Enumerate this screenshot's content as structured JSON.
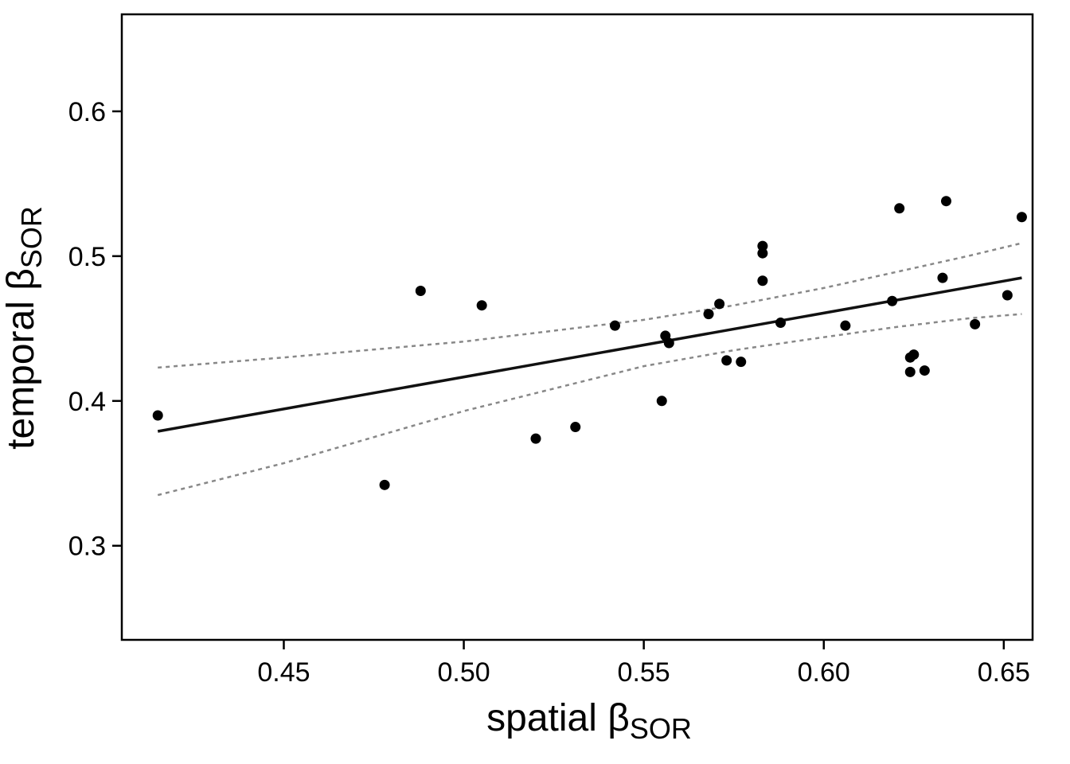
{
  "chart_data": {
    "type": "scatter",
    "xlabel": {
      "main": "spatial ",
      "symbol": "β",
      "sub": "SOR"
    },
    "ylabel": {
      "main": "temporal ",
      "symbol": "β",
      "sub": "SOR"
    },
    "xlim": [
      0.405,
      0.658
    ],
    "ylim": [
      0.235,
      0.667
    ],
    "x_ticks": [
      {
        "value": 0.45,
        "label": "0.45"
      },
      {
        "value": 0.5,
        "label": "0.50"
      },
      {
        "value": 0.55,
        "label": "0.55"
      },
      {
        "value": 0.6,
        "label": "0.60"
      },
      {
        "value": 0.65,
        "label": "0.65"
      }
    ],
    "y_ticks": [
      {
        "value": 0.3,
        "label": "0.3"
      },
      {
        "value": 0.4,
        "label": "0.4"
      },
      {
        "value": 0.5,
        "label": "0.5"
      },
      {
        "value": 0.6,
        "label": "0.6"
      }
    ],
    "grid": false,
    "points": [
      [
        0.415,
        0.39
      ],
      [
        0.478,
        0.342
      ],
      [
        0.488,
        0.476
      ],
      [
        0.505,
        0.466
      ],
      [
        0.52,
        0.374
      ],
      [
        0.531,
        0.382
      ],
      [
        0.542,
        0.452
      ],
      [
        0.555,
        0.4
      ],
      [
        0.556,
        0.445
      ],
      [
        0.557,
        0.44
      ],
      [
        0.568,
        0.46
      ],
      [
        0.571,
        0.467
      ],
      [
        0.573,
        0.428
      ],
      [
        0.577,
        0.427
      ],
      [
        0.583,
        0.507
      ],
      [
        0.583,
        0.502
      ],
      [
        0.583,
        0.483
      ],
      [
        0.588,
        0.454
      ],
      [
        0.606,
        0.452
      ],
      [
        0.619,
        0.469
      ],
      [
        0.621,
        0.533
      ],
      [
        0.624,
        0.43
      ],
      [
        0.624,
        0.42
      ],
      [
        0.625,
        0.432
      ],
      [
        0.628,
        0.421
      ],
      [
        0.633,
        0.485
      ],
      [
        0.634,
        0.538
      ],
      [
        0.642,
        0.453
      ],
      [
        0.651,
        0.473
      ],
      [
        0.655,
        0.527
      ]
    ],
    "fit_line": {
      "x": [
        0.415,
        0.655
      ],
      "y": [
        0.379,
        0.485
      ],
      "color": "#111111"
    },
    "ci_upper": {
      "x": [
        0.415,
        0.45,
        0.5,
        0.55,
        0.575,
        0.6,
        0.62,
        0.64,
        0.655
      ],
      "y": [
        0.423,
        0.43,
        0.441,
        0.456,
        0.466,
        0.478,
        0.489,
        0.5,
        0.509
      ],
      "color": "#888888"
    },
    "ci_lower": {
      "x": [
        0.415,
        0.45,
        0.5,
        0.55,
        0.575,
        0.6,
        0.62,
        0.64,
        0.655
      ],
      "y": [
        0.335,
        0.357,
        0.393,
        0.424,
        0.435,
        0.444,
        0.451,
        0.457,
        0.46
      ],
      "color": "#888888"
    }
  }
}
